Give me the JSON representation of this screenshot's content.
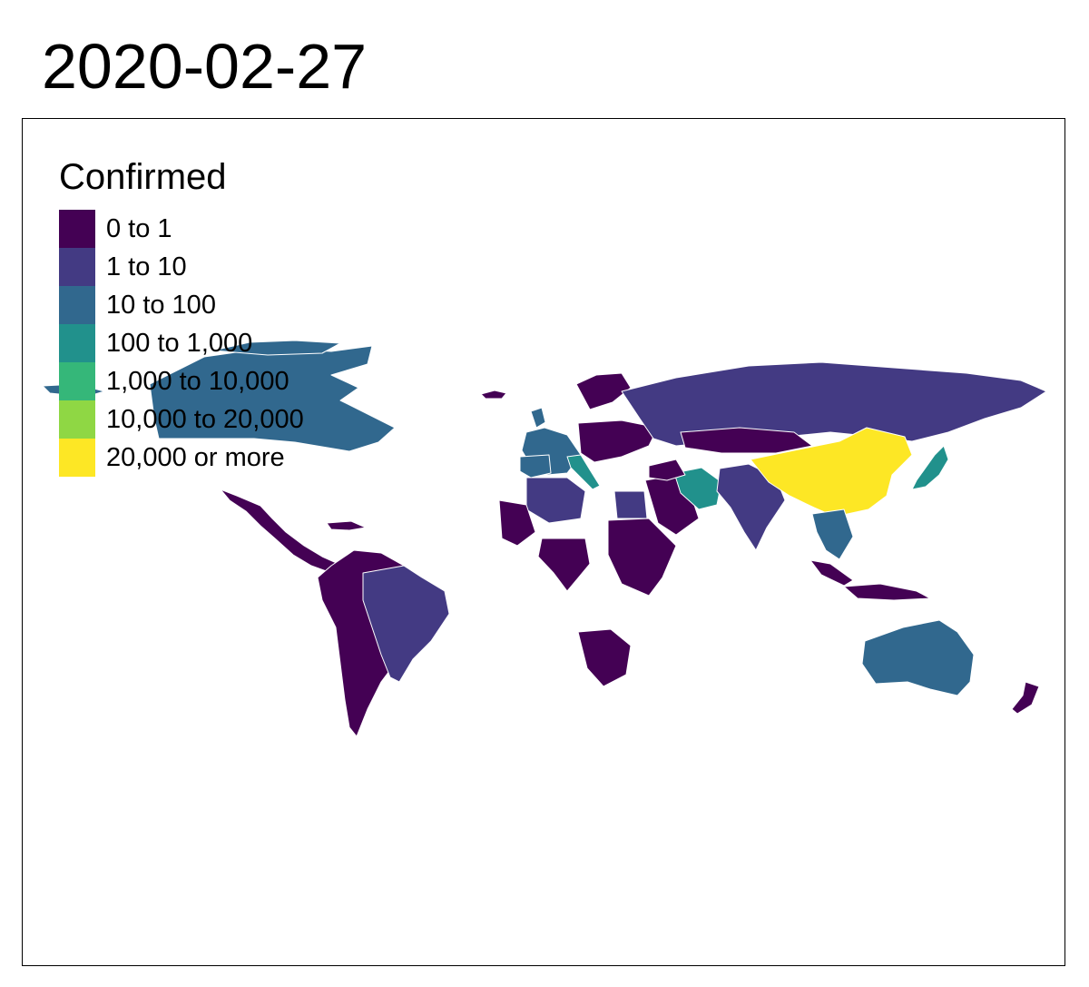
{
  "title": "2020-02-27",
  "legend": {
    "title": "Confirmed",
    "items": [
      {
        "label": "0 to 1",
        "color": "#440154"
      },
      {
        "label": "1 to 10",
        "color": "#433a83"
      },
      {
        "label": "10 to 100",
        "color": "#31688e"
      },
      {
        "label": "100 to 1,000",
        "color": "#21918c"
      },
      {
        "label": "1,000 to 10,000",
        "color": "#35b779"
      },
      {
        "label": "10,000 to 20,000",
        "color": "#8fd744"
      },
      {
        "label": "20,000 or more",
        "color": "#fde725"
      }
    ]
  },
  "regions": [
    {
      "name": "canada",
      "category": "10 to 100"
    },
    {
      "name": "greenland",
      "category": "0 to 1"
    },
    {
      "name": "mexico-central-america",
      "category": "0 to 1"
    },
    {
      "name": "south-america",
      "category": "0 to 1"
    },
    {
      "name": "brazil",
      "category": "1 to 10"
    },
    {
      "name": "western-europe",
      "category": "10 to 100"
    },
    {
      "name": "italy",
      "category": "100 to 1,000"
    },
    {
      "name": "eastern-europe",
      "category": "0 to 1"
    },
    {
      "name": "russia",
      "category": "1 to 10"
    },
    {
      "name": "north-africa",
      "category": "1 to 10"
    },
    {
      "name": "west-africa",
      "category": "0 to 1"
    },
    {
      "name": "egypt",
      "category": "1 to 10"
    },
    {
      "name": "east-africa",
      "category": "0 to 1"
    },
    {
      "name": "southern-africa",
      "category": "0 to 1"
    },
    {
      "name": "middle-east",
      "category": "0 to 1"
    },
    {
      "name": "iran",
      "category": "100 to 1,000"
    },
    {
      "name": "central-asia",
      "category": "0 to 1"
    },
    {
      "name": "south-asia",
      "category": "1 to 10"
    },
    {
      "name": "mongolia",
      "category": "0 to 1"
    },
    {
      "name": "china",
      "category": "20,000 or more"
    },
    {
      "name": "south-korea-japan",
      "category": "100 to 1,000"
    },
    {
      "name": "southeast-asia",
      "category": "10 to 100"
    },
    {
      "name": "indonesia",
      "category": "0 to 1"
    },
    {
      "name": "australia",
      "category": "10 to 100"
    },
    {
      "name": "new-zealand",
      "category": "0 to 1"
    }
  ]
}
